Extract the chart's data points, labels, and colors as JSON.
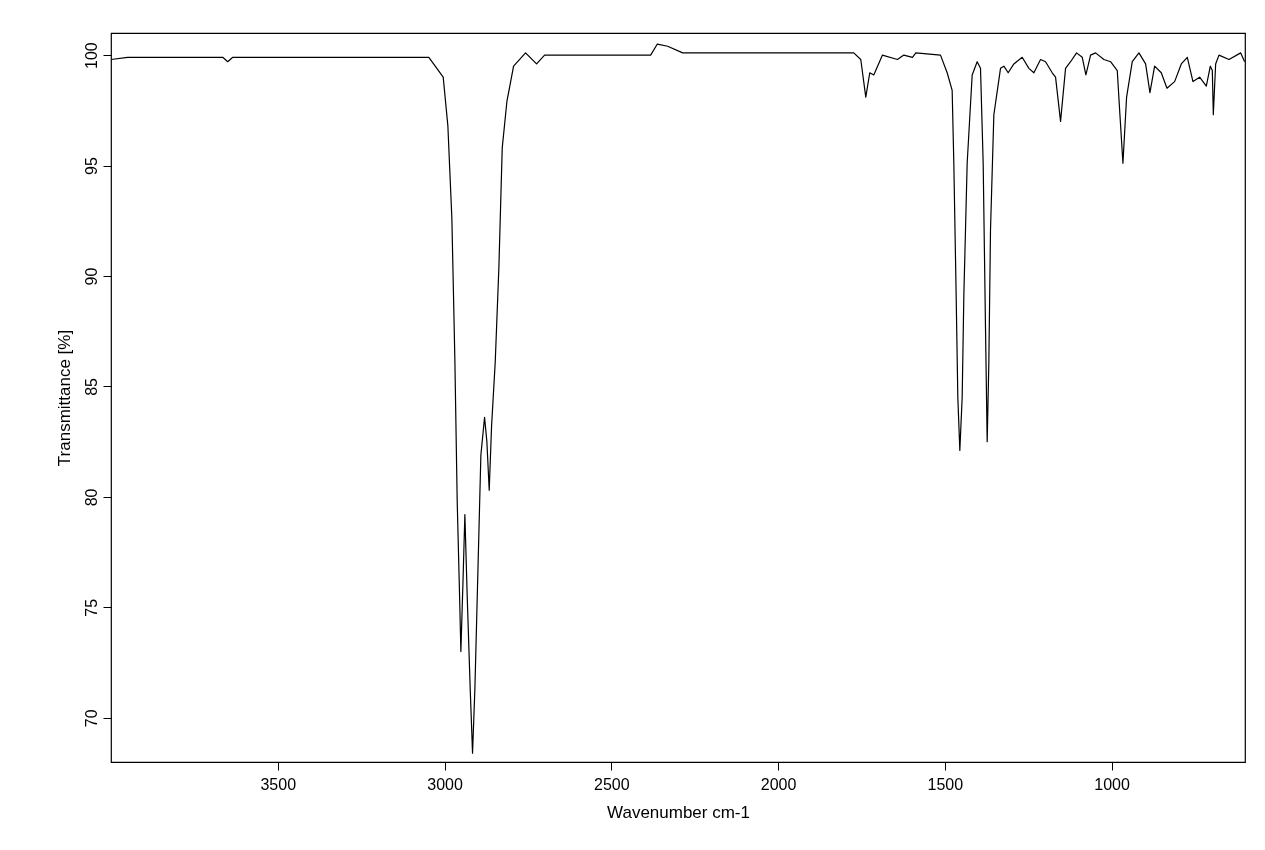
{
  "chart_data": {
    "type": "line",
    "xlabel": "Wavenumber cm-1",
    "ylabel": "Transmittance [%]",
    "xlim": [
      4000,
      600
    ],
    "ylim": [
      68,
      101
    ],
    "xticks": [
      3500,
      3000,
      2500,
      2000,
      1500,
      1000
    ],
    "yticks": [
      70,
      75,
      80,
      85,
      90,
      95,
      100
    ],
    "grid": false,
    "line_style": "solid",
    "series": [
      {
        "color": "#000000",
        "x": [
          4000,
          3950,
          3700,
          3665,
          3650,
          3635,
          3300,
          3100,
          3047,
          3004,
          2990,
          2978,
          2969,
          2962,
          2955,
          2951,
          2945,
          2939,
          2932,
          2923,
          2916,
          2909,
          2900,
          2891,
          2880,
          2873,
          2866,
          2859,
          2848,
          2837,
          2827,
          2813,
          2793,
          2757,
          2724,
          2700,
          2382,
          2362,
          2331,
          2286,
          1773,
          1752,
          1737,
          1725,
          1713,
          1687,
          1642,
          1623,
          1597,
          1587,
          1513,
          1493,
          1478,
          1473,
          1466,
          1461,
          1455,
          1448,
          1443,
          1433,
          1418,
          1403,
          1393,
          1385,
          1378,
          1373,
          1368,
          1363,
          1353,
          1333,
          1323,
          1310,
          1293,
          1268,
          1248,
          1233,
          1213,
          1198,
          1178,
          1168,
          1153,
          1138,
          1123,
          1105,
          1088,
          1077,
          1063,
          1048,
          1023,
          1003,
          983,
          975,
          966,
          955,
          938,
          918,
          898,
          885,
          871,
          851,
          834,
          811,
          791,
          773,
          756,
          736,
          716,
          704,
          698,
          695,
          688,
          678,
          648,
          613,
          601
        ],
        "values": [
          99.8,
          99.9,
          99.9,
          99.9,
          99.7,
          99.9,
          99.9,
          99.9,
          99.9,
          99.0,
          96.8,
          92.6,
          86.2,
          79.8,
          75.6,
          73.0,
          76.0,
          79.2,
          75.5,
          71.3,
          68.4,
          71.3,
          76.6,
          81.9,
          83.6,
          82.5,
          80.3,
          83.2,
          86.1,
          90.4,
          95.8,
          97.9,
          99.5,
          100.1,
          99.6,
          100.0,
          100.0,
          100.5,
          100.4,
          100.1,
          100.1,
          99.8,
          98.1,
          99.2,
          99.1,
          100.0,
          99.8,
          100.0,
          99.9,
          100.1,
          100.0,
          99.2,
          98.4,
          95.1,
          89.1,
          84.5,
          82.1,
          84.5,
          89.1,
          95.1,
          99.1,
          99.7,
          99.4,
          95.1,
          87.6,
          82.5,
          86.1,
          92.1,
          97.3,
          99.4,
          99.5,
          99.2,
          99.6,
          99.9,
          99.4,
          99.2,
          99.8,
          99.7,
          99.2,
          99.0,
          97.0,
          99.4,
          99.7,
          100.1,
          99.9,
          99.1,
          100.0,
          100.1,
          99.8,
          99.7,
          99.3,
          97.3,
          95.1,
          98.1,
          99.7,
          100.1,
          99.6,
          98.3,
          99.5,
          99.2,
          98.5,
          98.8,
          99.6,
          99.9,
          98.8,
          99.0,
          98.6,
          99.5,
          99.3,
          97.3,
          99.6,
          100.0,
          99.8,
          100.1,
          99.7
        ]
      }
    ]
  }
}
